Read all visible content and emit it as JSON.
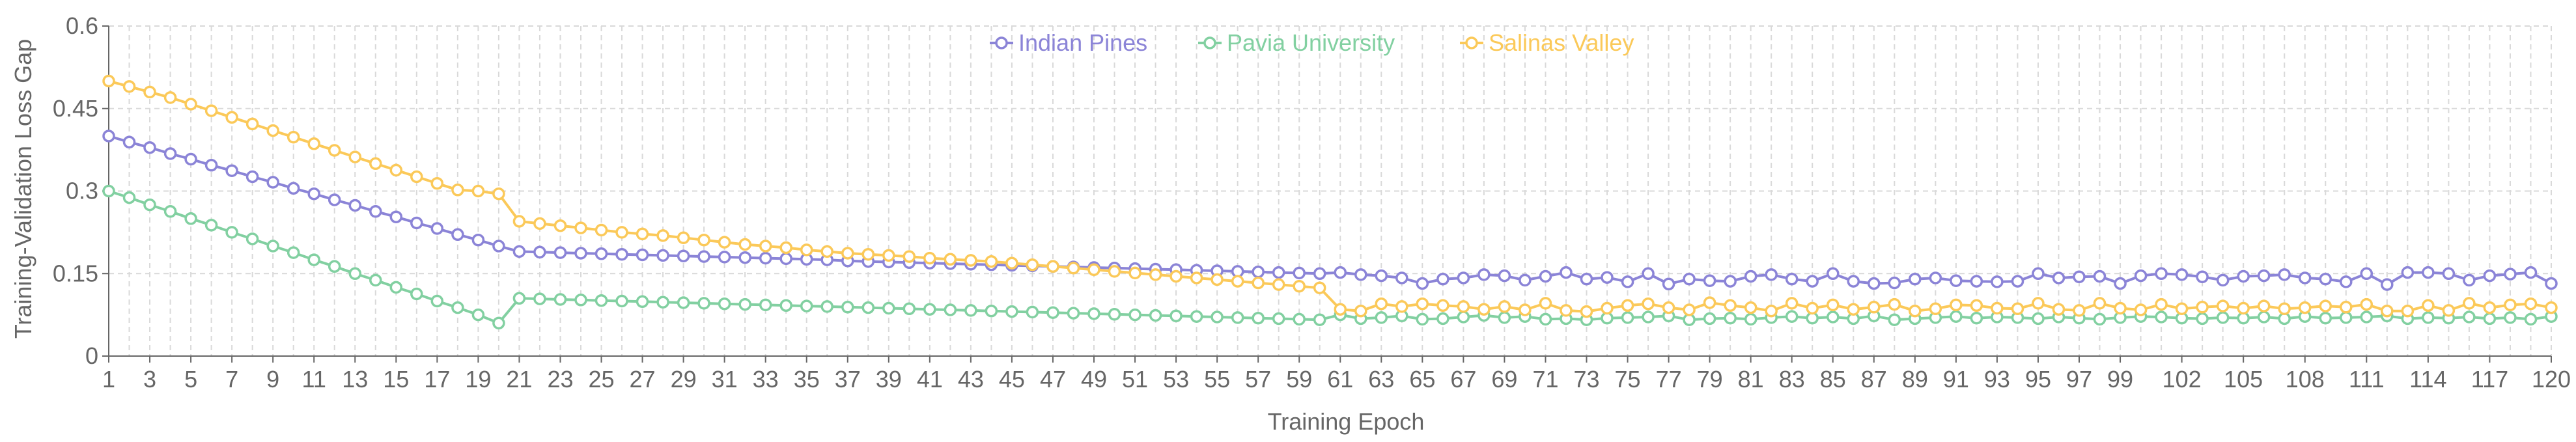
{
  "colors": {
    "indian_pines": "#8b84d7",
    "pavia_university": "#82d0a1",
    "salinas_valley": "#fbc959",
    "grid": "#d9d9d9",
    "axis": "#666666",
    "text": "#666666"
  },
  "chart_data": {
    "type": "line",
    "title": "",
    "xlabel": "Training Epoch",
    "ylabel": "Training-Validation Loss Gap",
    "ylim": [
      0,
      0.6
    ],
    "yticks": [
      "0",
      "0.15",
      "0.3",
      "0.45",
      "0.6"
    ],
    "ytick_values": [
      0,
      0.15,
      0.3,
      0.45,
      0.6
    ],
    "xlim": [
      1,
      120
    ],
    "xticks": [
      "1",
      "3",
      "5",
      "7",
      "9",
      "11",
      "13",
      "15",
      "17",
      "19",
      "21",
      "23",
      "25",
      "27",
      "29",
      "31",
      "33",
      "35",
      "37",
      "39",
      "41",
      "43",
      "45",
      "47",
      "49",
      "51",
      "53",
      "55",
      "57",
      "59",
      "61",
      "63",
      "65",
      "67",
      "69",
      "71",
      "73",
      "75",
      "77",
      "79",
      "81",
      "83",
      "85",
      "87",
      "89",
      "91",
      "93",
      "95",
      "97",
      "99",
      "102",
      "105",
      "108",
      "111",
      "114",
      "117",
      "120"
    ],
    "grid": true,
    "legend_position": "top-center",
    "x": [
      1,
      2,
      3,
      4,
      5,
      6,
      7,
      8,
      9,
      10,
      11,
      12,
      13,
      14,
      15,
      16,
      17,
      18,
      19,
      20,
      21,
      22,
      23,
      24,
      25,
      26,
      27,
      28,
      29,
      30,
      31,
      32,
      33,
      34,
      35,
      36,
      37,
      38,
      39,
      40,
      41,
      42,
      43,
      44,
      45,
      46,
      47,
      48,
      49,
      50,
      51,
      52,
      53,
      54,
      55,
      56,
      57,
      58,
      59,
      60,
      61,
      62,
      63,
      64,
      65,
      66,
      67,
      68,
      69,
      70,
      71,
      72,
      73,
      74,
      75,
      76,
      77,
      78,
      79,
      80,
      81,
      82,
      83,
      84,
      85,
      86,
      87,
      88,
      89,
      90,
      91,
      92,
      93,
      94,
      95,
      96,
      97,
      98,
      99,
      100,
      101,
      102,
      103,
      104,
      105,
      106,
      107,
      108,
      109,
      110,
      111,
      112,
      113,
      114,
      115,
      116,
      117,
      118,
      119,
      120
    ],
    "series": [
      {
        "name": "Indian Pines",
        "color": "#8b84d7",
        "values": [
          0.4,
          0.389,
          0.379,
          0.368,
          0.358,
          0.347,
          0.337,
          0.326,
          0.316,
          0.305,
          0.295,
          0.284,
          0.274,
          0.263,
          0.253,
          0.242,
          0.232,
          0.221,
          0.211,
          0.2,
          0.19,
          0.189,
          0.188,
          0.187,
          0.186,
          0.185,
          0.184,
          0.183,
          0.182,
          0.181,
          0.18,
          0.179,
          0.178,
          0.177,
          0.176,
          0.175,
          0.173,
          0.172,
          0.171,
          0.17,
          0.169,
          0.168,
          0.167,
          0.166,
          0.165,
          0.164,
          0.163,
          0.162,
          0.161,
          0.16,
          0.159,
          0.158,
          0.157,
          0.156,
          0.155,
          0.154,
          0.153,
          0.152,
          0.151,
          0.15,
          0.152,
          0.148,
          0.146,
          0.142,
          0.132,
          0.14,
          0.142,
          0.148,
          0.146,
          0.138,
          0.145,
          0.152,
          0.14,
          0.143,
          0.135,
          0.15,
          0.131,
          0.14,
          0.137,
          0.136,
          0.145,
          0.148,
          0.14,
          0.136,
          0.15,
          0.136,
          0.132,
          0.133,
          0.14,
          0.142,
          0.137,
          0.136,
          0.135,
          0.136,
          0.15,
          0.142,
          0.144,
          0.145,
          0.132,
          0.146,
          0.15,
          0.148,
          0.144,
          0.138,
          0.145,
          0.146,
          0.148,
          0.142,
          0.14,
          0.135,
          0.15,
          0.13,
          0.152,
          0.152,
          0.15,
          0.138,
          0.146,
          0.149,
          0.152,
          0.132
        ]
      },
      {
        "name": "Pavia University",
        "color": "#82d0a1",
        "values": [
          0.3,
          0.288,
          0.275,
          0.263,
          0.25,
          0.238,
          0.225,
          0.213,
          0.2,
          0.188,
          0.175,
          0.163,
          0.15,
          0.138,
          0.125,
          0.113,
          0.1,
          0.088,
          0.075,
          0.06,
          0.105,
          0.104,
          0.103,
          0.102,
          0.101,
          0.1,
          0.099,
          0.098,
          0.097,
          0.096,
          0.095,
          0.094,
          0.093,
          0.092,
          0.091,
          0.09,
          0.089,
          0.088,
          0.087,
          0.086,
          0.085,
          0.084,
          0.083,
          0.082,
          0.081,
          0.08,
          0.079,
          0.078,
          0.077,
          0.076,
          0.075,
          0.074,
          0.073,
          0.072,
          0.071,
          0.07,
          0.069,
          0.068,
          0.067,
          0.066,
          0.075,
          0.068,
          0.07,
          0.073,
          0.067,
          0.068,
          0.071,
          0.074,
          0.07,
          0.072,
          0.067,
          0.068,
          0.066,
          0.069,
          0.07,
          0.071,
          0.073,
          0.066,
          0.068,
          0.069,
          0.067,
          0.07,
          0.072,
          0.069,
          0.071,
          0.068,
          0.073,
          0.066,
          0.068,
          0.07,
          0.072,
          0.069,
          0.071,
          0.07,
          0.068,
          0.071,
          0.069,
          0.067,
          0.07,
          0.072,
          0.071,
          0.069,
          0.068,
          0.07,
          0.069,
          0.071,
          0.068,
          0.072,
          0.069,
          0.07,
          0.071,
          0.073,
          0.068,
          0.07,
          0.069,
          0.071,
          0.068,
          0.07,
          0.067,
          0.072
        ]
      },
      {
        "name": "Salinas Valley",
        "color": "#fbc959",
        "values": [
          0.5,
          0.49,
          0.48,
          0.47,
          0.458,
          0.446,
          0.434,
          0.422,
          0.41,
          0.398,
          0.386,
          0.374,
          0.362,
          0.35,
          0.338,
          0.326,
          0.314,
          0.302,
          0.3,
          0.295,
          0.245,
          0.241,
          0.237,
          0.233,
          0.229,
          0.225,
          0.222,
          0.219,
          0.215,
          0.211,
          0.207,
          0.203,
          0.2,
          0.197,
          0.193,
          0.19,
          0.187,
          0.185,
          0.183,
          0.181,
          0.178,
          0.176,
          0.174,
          0.172,
          0.169,
          0.166,
          0.163,
          0.16,
          0.157,
          0.154,
          0.151,
          0.148,
          0.145,
          0.142,
          0.139,
          0.136,
          0.133,
          0.13,
          0.127,
          0.124,
          0.085,
          0.082,
          0.095,
          0.09,
          0.095,
          0.092,
          0.09,
          0.085,
          0.09,
          0.084,
          0.096,
          0.083,
          0.081,
          0.087,
          0.092,
          0.095,
          0.088,
          0.084,
          0.097,
          0.092,
          0.088,
          0.082,
          0.096,
          0.087,
          0.093,
          0.085,
          0.089,
          0.094,
          0.082,
          0.086,
          0.093,
          0.092,
          0.087,
          0.086,
          0.096,
          0.085,
          0.083,
          0.096,
          0.087,
          0.084,
          0.094,
          0.086,
          0.089,
          0.091,
          0.087,
          0.091,
          0.086,
          0.088,
          0.091,
          0.089,
          0.094,
          0.082,
          0.082,
          0.092,
          0.083,
          0.096,
          0.088,
          0.093,
          0.095,
          0.088
        ]
      }
    ]
  }
}
